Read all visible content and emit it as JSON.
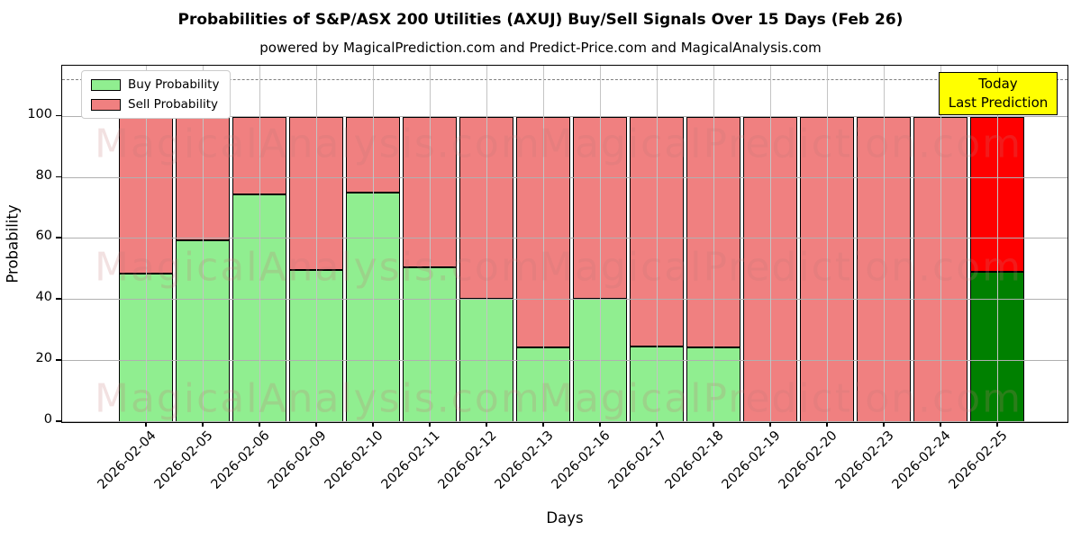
{
  "title": "Probabilities of S&P/ASX 200 Utilities (AXUJ) Buy/Sell Signals Over 15 Days (Feb 26)",
  "subtitle": "powered by MagicalPrediction.com and Predict-Price.com and MagicalAnalysis.com",
  "watermarks": {
    "left": "MagicalAnalysis.com",
    "right": "MagicalPrediction.com"
  },
  "annotation": {
    "line1": "Today",
    "line2": "Last Prediction",
    "bg_color": "#ffff00"
  },
  "legend": [
    {
      "label": "Buy Probability",
      "color": "#90ee90"
    },
    {
      "label": "Sell Probability",
      "color": "#f08080"
    }
  ],
  "chart_data": {
    "type": "bar",
    "stacked": true,
    "title": "Probabilities of S&P/ASX 200 Utilities (AXUJ) Buy/Sell Signals Over 15 Days (Feb 26)",
    "xlabel": "Days",
    "ylabel": "Probability",
    "ylim": [
      0,
      116.4
    ],
    "yticks": [
      0,
      20,
      40,
      60,
      80,
      100
    ],
    "grid": true,
    "dashed_line_y": 112,
    "legend_position": "upper left",
    "categories": [
      "2026-02-04",
      "2026-02-05",
      "2026-02-06",
      "2026-02-09",
      "2026-02-10",
      "2026-02-11",
      "2026-02-12",
      "2026-02-13",
      "2026-02-16",
      "2026-02-17",
      "2026-02-18",
      "2026-02-19",
      "2026-02-20",
      "2026-02-23",
      "2026-02-24",
      "2026-02-25"
    ],
    "series": [
      {
        "name": "Buy Probability",
        "color": "#90ee90",
        "last_bar_color": "#008000",
        "values": [
          49,
          59.8,
          75,
          50,
          75.5,
          51,
          40.5,
          24.5,
          40.5,
          25,
          24.5,
          0,
          0,
          0,
          0,
          49.5
        ]
      },
      {
        "name": "Sell Probability",
        "color": "#f08080",
        "last_bar_color": "#ff0000",
        "values": [
          51,
          40.2,
          25,
          50,
          24.5,
          49,
          59.5,
          75.5,
          59.5,
          75,
          75.5,
          100,
          100,
          100,
          100,
          50.5
        ]
      }
    ]
  }
}
